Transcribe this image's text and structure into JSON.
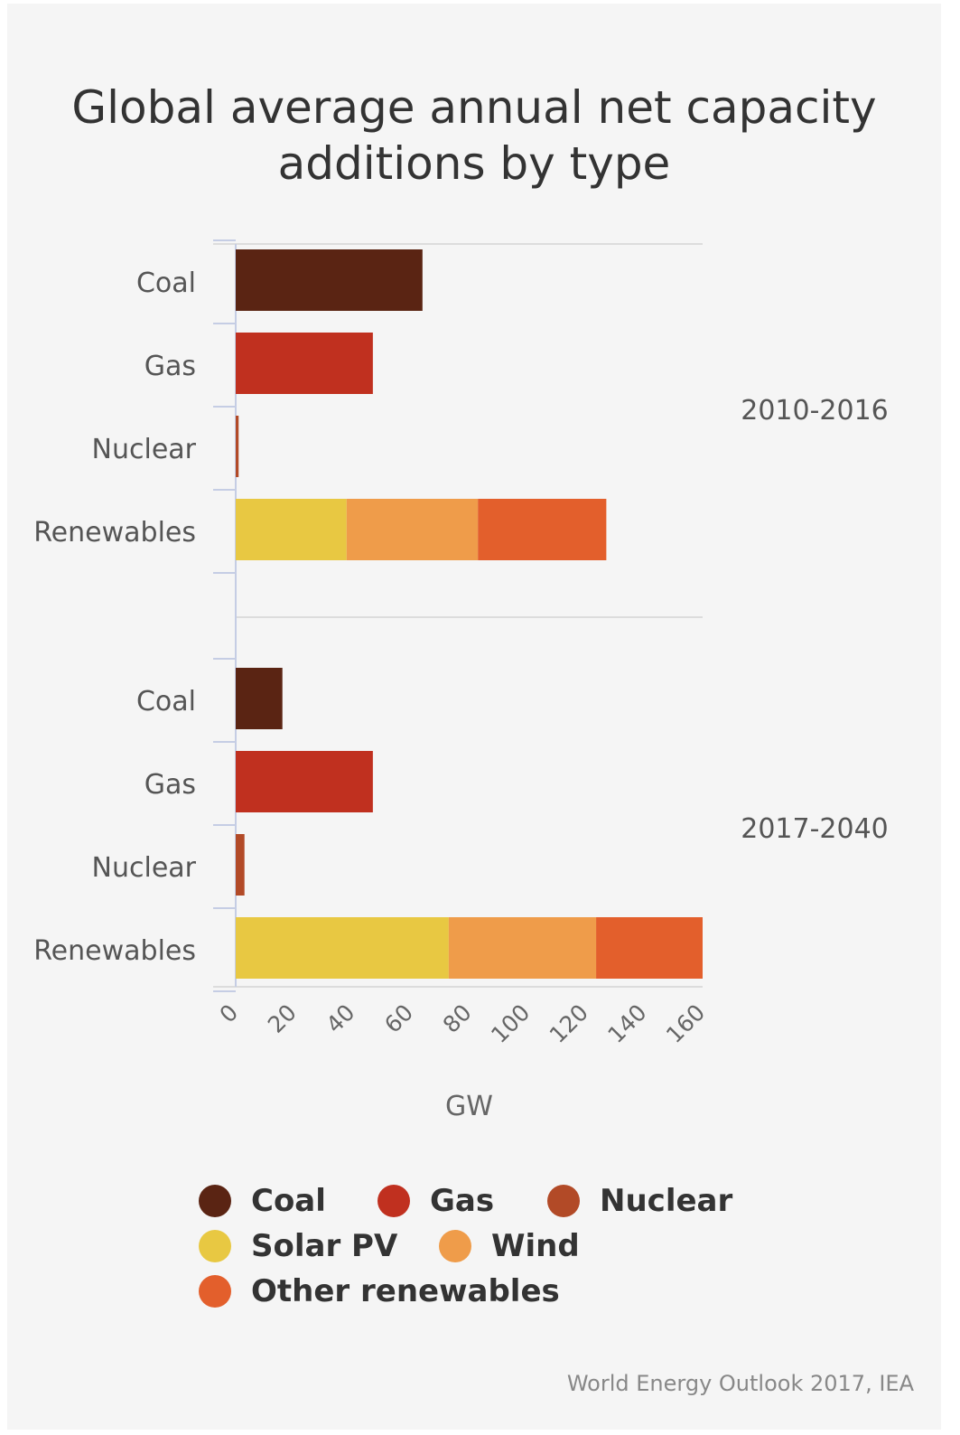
{
  "chart_data": {
    "type": "bar",
    "orientation": "horizontal",
    "stacked": true,
    "title": "Global average annual net capacity additions by type",
    "xlabel": "GW",
    "xlim": [
      0,
      160
    ],
    "x_ticks": [
      "0",
      "20",
      "40",
      "60",
      "80",
      "100",
      "120",
      "140",
      "160"
    ],
    "categories": [
      "Coal",
      "Gas",
      "Nuclear",
      "Renewables"
    ],
    "series": [
      {
        "name": "Coal",
        "color": "#5a2413"
      },
      {
        "name": "Gas",
        "color": "#c0301f"
      },
      {
        "name": "Nuclear",
        "color": "#b24a27"
      },
      {
        "name": "Solar PV",
        "color": "#e8c842"
      },
      {
        "name": "Wind",
        "color": "#ef9c4a"
      },
      {
        "name": "Other renewables",
        "color": "#e35f2c"
      }
    ],
    "groups": [
      {
        "label": "2010-2016",
        "bars": [
          {
            "category": "Coal",
            "segments": [
              {
                "series": "Coal",
                "value": 64
              }
            ]
          },
          {
            "category": "Gas",
            "segments": [
              {
                "series": "Gas",
                "value": 47
              }
            ]
          },
          {
            "category": "Nuclear",
            "segments": [
              {
                "series": "Nuclear",
                "value": 1
              }
            ]
          },
          {
            "category": "Renewables",
            "segments": [
              {
                "series": "Solar PV",
                "value": 38
              },
              {
                "series": "Wind",
                "value": 45
              },
              {
                "series": "Other renewables",
                "value": 44
              }
            ]
          }
        ]
      },
      {
        "label": "2017-2040",
        "bars": [
          {
            "category": "Coal",
            "segments": [
              {
                "series": "Coal",
                "value": 16
              }
            ]
          },
          {
            "category": "Gas",
            "segments": [
              {
                "series": "Gas",
                "value": 47
              }
            ]
          },
          {
            "category": "Nuclear",
            "segments": [
              {
                "series": "Nuclear",
                "value": 3
              }
            ]
          },
          {
            "category": "Renewables",
            "segments": [
              {
                "series": "Solar PV",
                "value": 73
              },
              {
                "series": "Wind",
                "value": 50.5
              },
              {
                "series": "Other renewables",
                "value": 36.5
              }
            ]
          }
        ]
      }
    ],
    "grid": true,
    "legend_position": "bottom"
  },
  "legend": [
    {
      "label": "Coal",
      "color": "#5a2413"
    },
    {
      "label": "Gas",
      "color": "#c0301f"
    },
    {
      "label": "Nuclear",
      "color": "#b24a27"
    },
    {
      "label": "Solar PV",
      "color": "#e8c842"
    },
    {
      "label": "Wind",
      "color": "#ef9c4a"
    },
    {
      "label": "Other renewables",
      "color": "#e35f2c"
    }
  ],
  "source": "World Energy Outlook 2017, IEA"
}
